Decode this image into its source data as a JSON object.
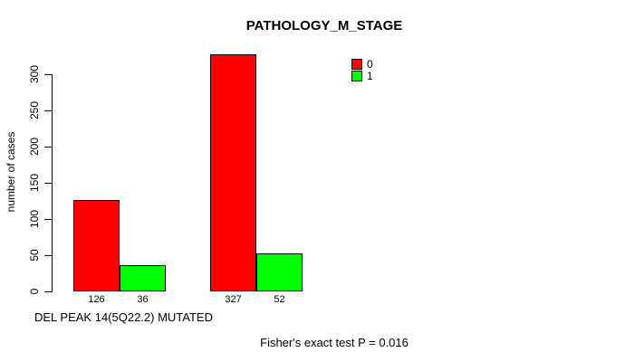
{
  "chart_data": {
    "type": "bar",
    "title": "PATHOLOGY_M_STAGE",
    "ylabel": "number of cases",
    "xlabel": "DEL PEAK 14(5Q22.2) MUTATED",
    "ylim": [
      0,
      300
    ],
    "yticks": [
      0,
      50,
      100,
      150,
      200,
      250,
      300
    ],
    "grid": false,
    "legend_position": "top-right",
    "series": [
      {
        "name": "0",
        "color": "#ff0000",
        "values": [
          126,
          327
        ]
      },
      {
        "name": "1",
        "color": "#00ff00",
        "values": [
          36,
          52
        ]
      }
    ],
    "groups": [
      {
        "bars": [
          {
            "series": "0",
            "value": 126,
            "label": "126",
            "color": "#ff0000"
          },
          {
            "series": "1",
            "value": 36,
            "label": "36",
            "color": "#00ff00"
          }
        ]
      },
      {
        "bars": [
          {
            "series": "0",
            "value": 327,
            "label": "327",
            "color": "#ff0000"
          },
          {
            "series": "1",
            "value": 52,
            "label": "52",
            "color": "#00ff00"
          }
        ]
      }
    ],
    "legend": [
      {
        "label": "0",
        "color": "#ff0000"
      },
      {
        "label": "1",
        "color": "#00ff00"
      }
    ],
    "annotation": "Fisher's exact test P = 0.016"
  }
}
